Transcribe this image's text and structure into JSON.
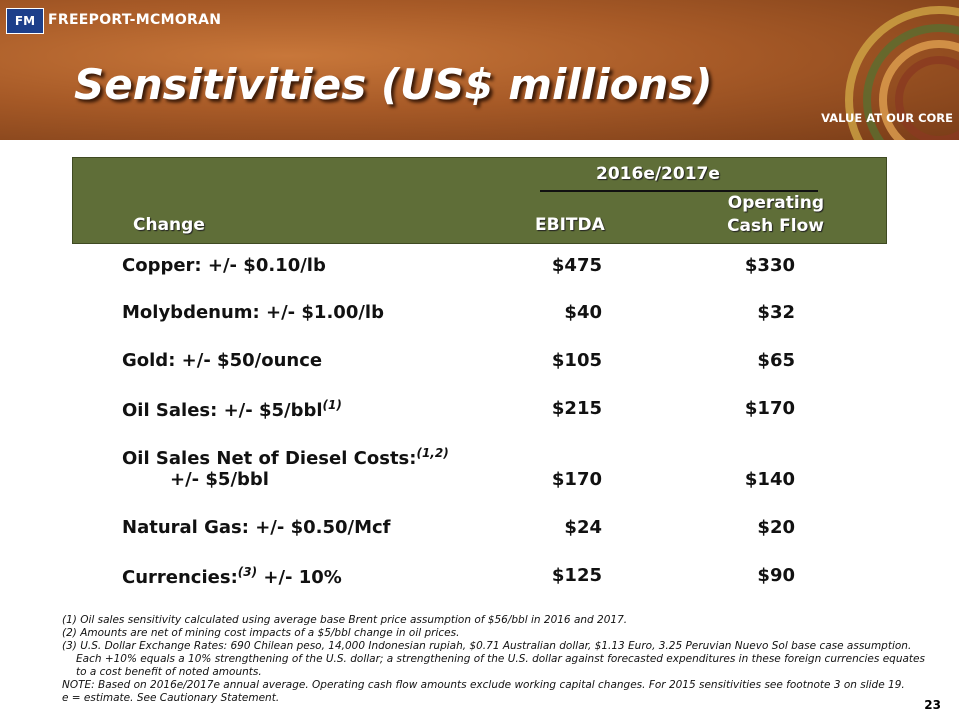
{
  "header": {
    "company": "FREEPORT-MCMORAN",
    "title": "Sensitivities (US$ millions)",
    "tagline": "VALUE AT OUR CORE"
  },
  "table": {
    "group": "2016e/2017e",
    "columns": {
      "change": "Change",
      "ebitda": "EBITDA",
      "ocf": [
        "Operating",
        "Cash Flow"
      ]
    },
    "rows": [
      {
        "label": "Copper: +/- $0.10/lb",
        "ebitda": "$475",
        "ocf": "$330"
      },
      {
        "label": "Molybdenum: +/- $1.00/lb",
        "ebitda": "$40",
        "ocf": "$32"
      },
      {
        "label": "Gold: +/- $50/ounce",
        "ebitda": "$105",
        "ocf": "$65"
      },
      {
        "label": "Oil Sales: +/- $5/bbl",
        "sup": "(1)",
        "ebitda": "$215",
        "ocf": "$170"
      },
      {
        "label": "Oil Sales Net of Diesel Costs:",
        "sup": "(1,2)",
        "label2": "+/- $5/bbl",
        "ebitda": "$170",
        "ocf": "$140"
      },
      {
        "label": "Natural Gas: +/- $0.50/Mcf",
        "ebitda": "$24",
        "ocf": "$20"
      },
      {
        "label": "Currencies:",
        "sup": "(3)",
        "label_after": " +/- 10%",
        "ebitda": "$125",
        "ocf": "$90"
      }
    ]
  },
  "footnotes": [
    "(1) Oil sales sensitivity calculated using average base Brent price assumption of $56/bbl in 2016 and 2017.",
    "(2) Amounts are net of mining cost impacts of a $5/bbl change in oil prices.",
    "(3) U.S. Dollar Exchange Rates: 690 Chilean peso, 14,000 Indonesian rupiah, $0.71 Australian dollar, $1.13 Euro, 3.25 Peruvian Nuevo Sol base case assumption. Each +10% equals a 10% strengthening of the U.S. dollar; a strengthening of the U.S. dollar against forecasted expenditures in these foreign currencies equates to a cost benefit of noted amounts.",
    "NOTE: Based on 2016e/2017e annual average. Operating cash flow amounts exclude working capital changes.  For 2015 sensitivities see footnote 3 on slide 19.",
    "e = estimate. See Cautionary Statement."
  ],
  "page_number": "23"
}
